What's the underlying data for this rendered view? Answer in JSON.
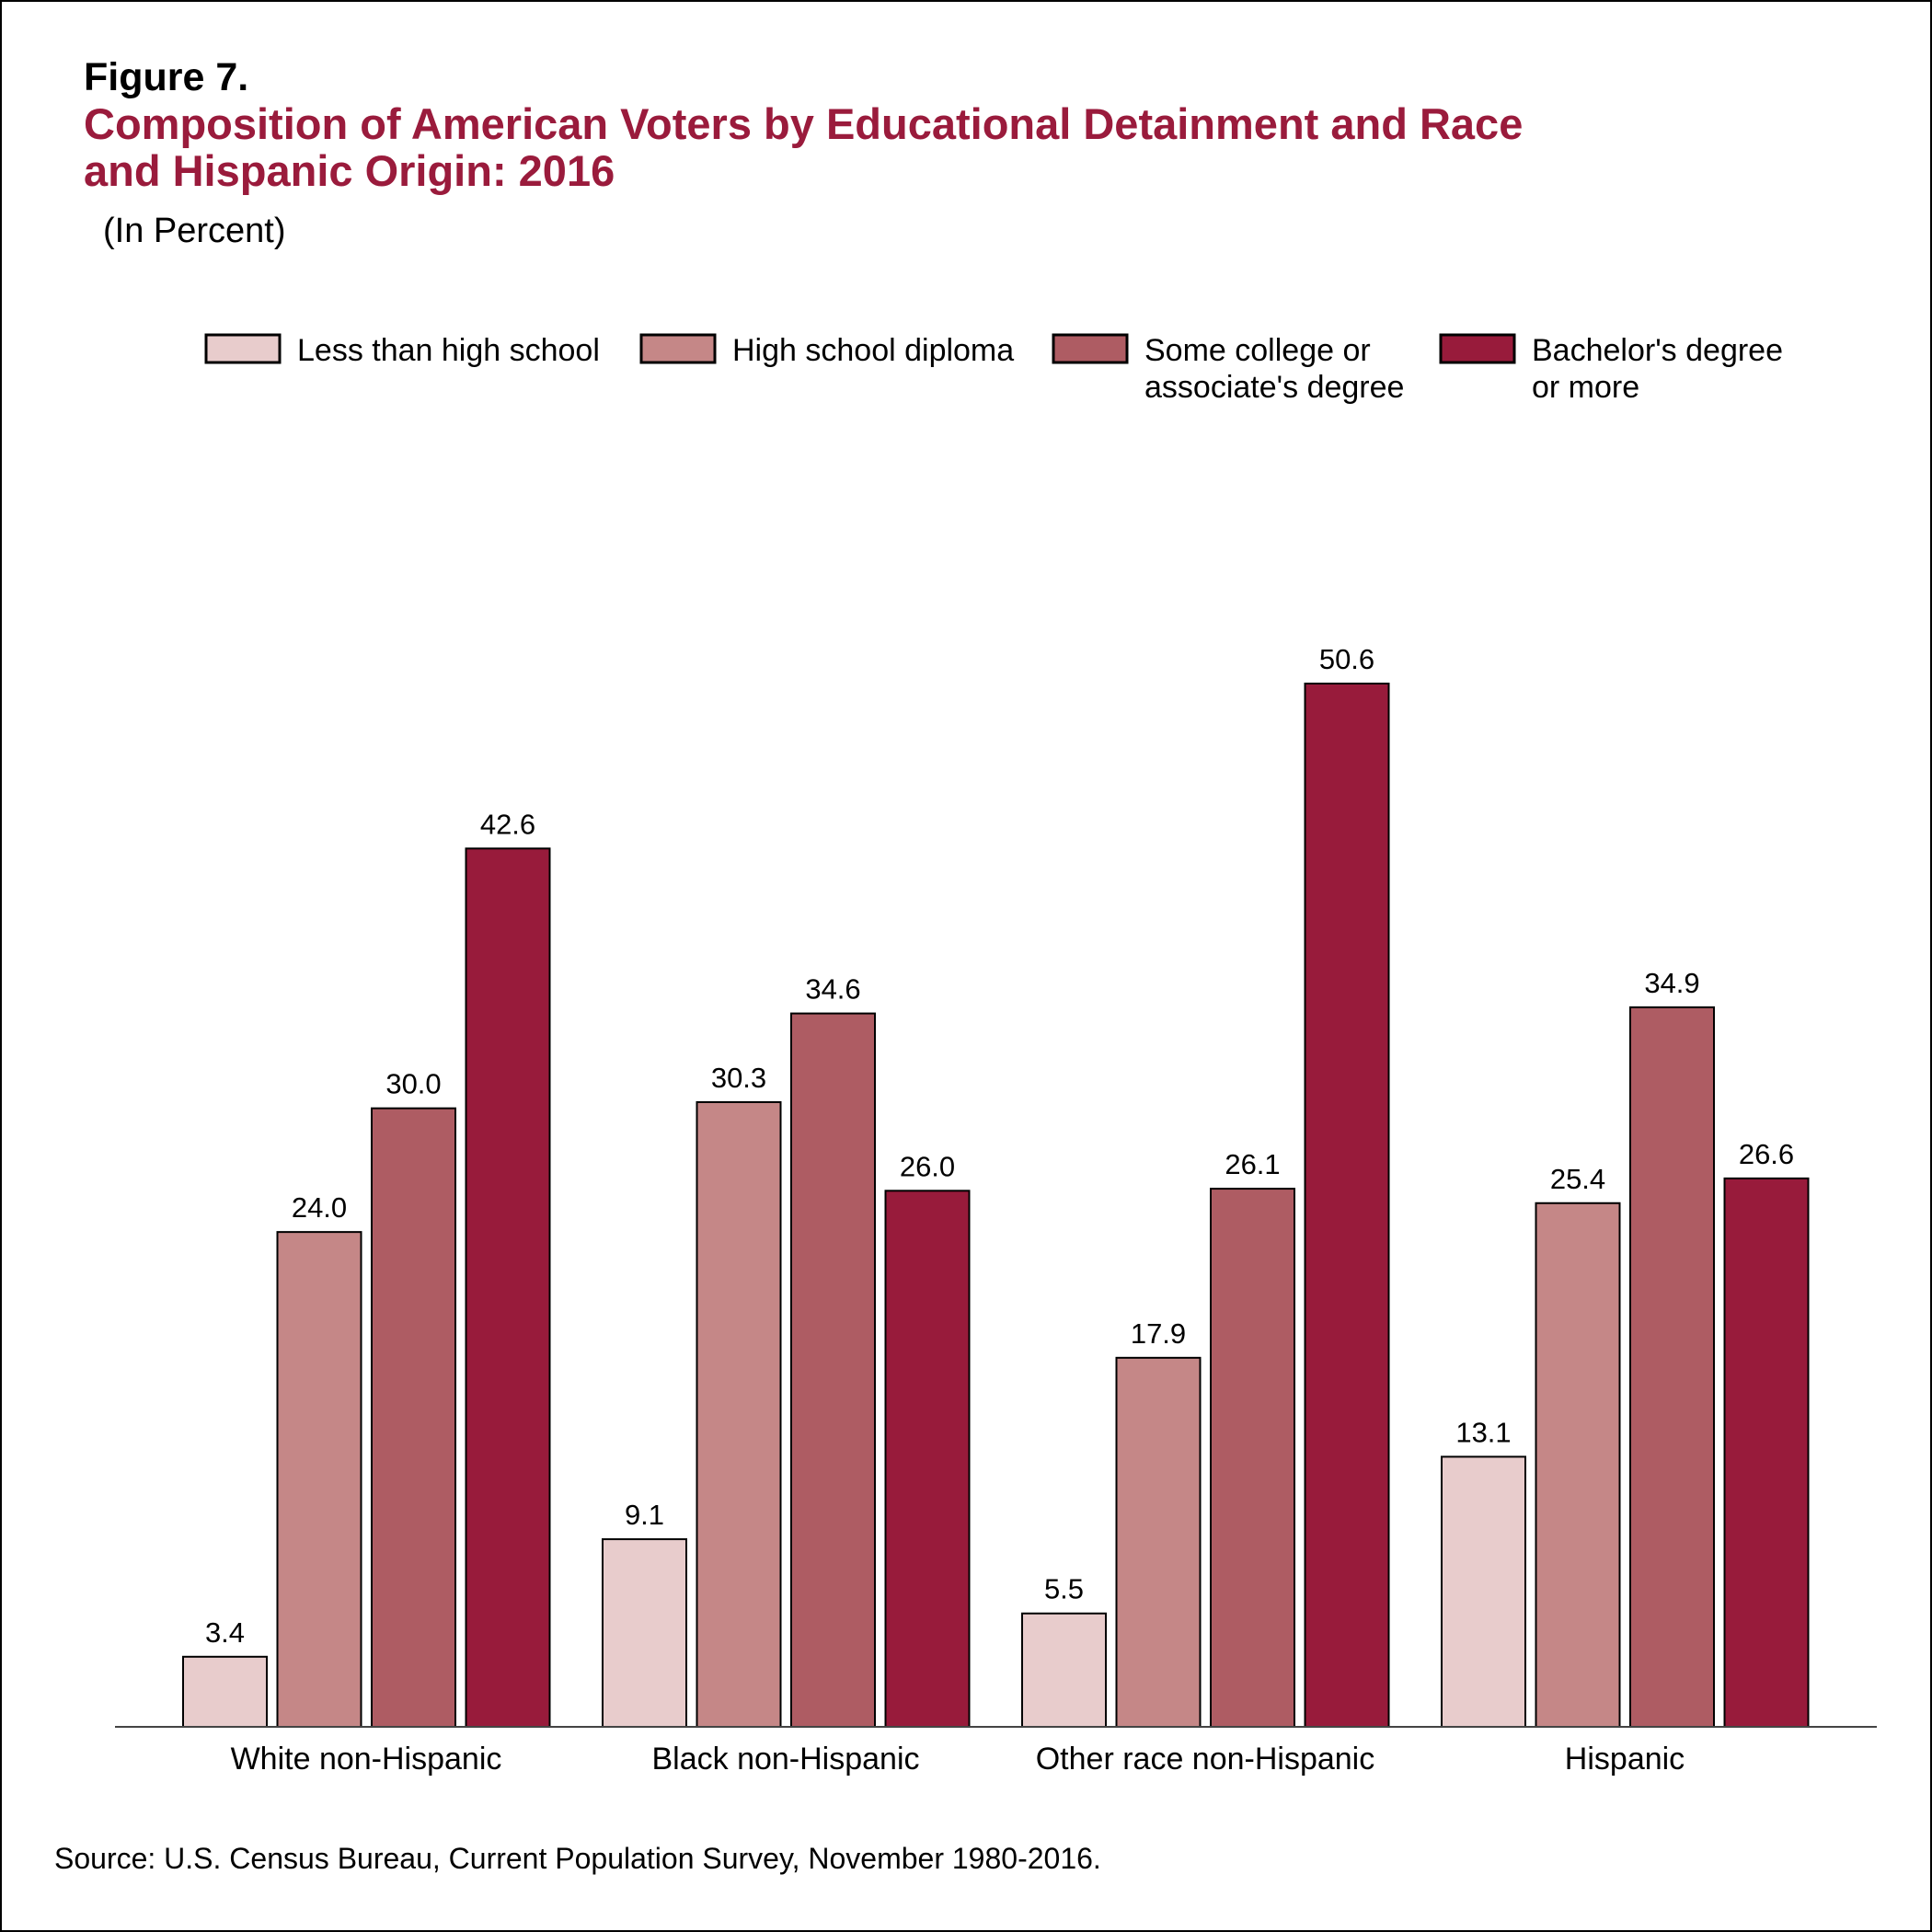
{
  "figure_label": "Figure 7.",
  "title_lines": [
    "Composition of American Voters by Educational Detainment and Race",
    "and Hispanic Origin: 2016"
  ],
  "subtitle": "(In Percent)",
  "source": "Source: U.S. Census Bureau, Current Population Survey, November 1980-2016.",
  "chart_data": {
    "type": "bar",
    "categories": [
      "White non-Hispanic",
      "Black non-Hispanic",
      "Other race non-Hispanic",
      "Hispanic"
    ],
    "series": [
      {
        "name": [
          "Less than high school"
        ],
        "color": "#e8cccc",
        "values": [
          3.4,
          9.1,
          5.5,
          13.1
        ]
      },
      {
        "name": [
          "High school diploma"
        ],
        "color": "#c58787",
        "values": [
          24.0,
          30.3,
          17.9,
          25.4
        ]
      },
      {
        "name": [
          "Some college or",
          "associate's degree"
        ],
        "color": "#ae5c63",
        "values": [
          30.0,
          34.6,
          26.1,
          34.9
        ]
      },
      {
        "name": [
          "Bachelor's degree",
          "or more"
        ],
        "color": "#981b3b",
        "values": [
          42.6,
          26.0,
          50.6,
          26.6
        ]
      }
    ],
    "data_labels": [
      [
        "3.4",
        "9.1",
        "5.5",
        "13.1"
      ],
      [
        "24.0",
        "30.3",
        "17.9",
        "25.4"
      ],
      [
        "30.0",
        "34.6",
        "26.1",
        "34.9"
      ],
      [
        "42.6",
        "26.0",
        "50.6",
        "26.6"
      ]
    ],
    "ylim": [
      0,
      50.6
    ],
    "xlabel": "",
    "ylabel": "",
    "grid": false,
    "legend_position": "top"
  }
}
